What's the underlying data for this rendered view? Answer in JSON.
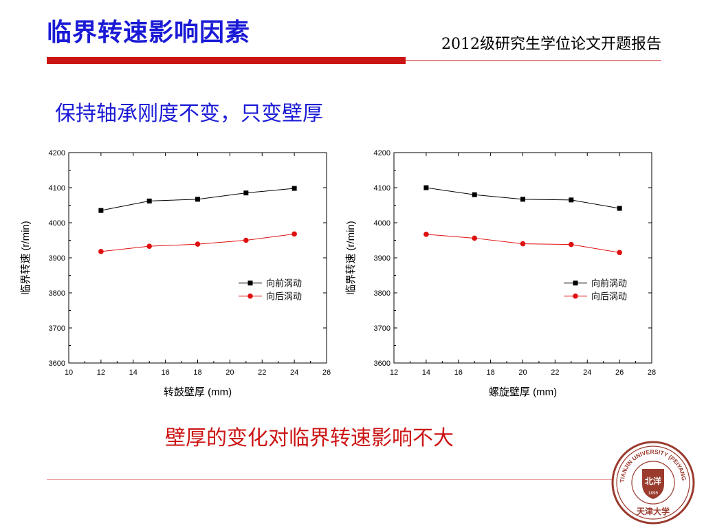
{
  "page": {
    "title": "临界转速影响因素",
    "header_right": "2012级研究生学位论文开题报告",
    "subheading": "保持轴承刚度不变，只变壁厚",
    "conclusion": "壁厚的变化对临界转速影响不大"
  },
  "logo": {
    "outer_text": "TIANJIN UNIVERSITY (PEIYANG UNIVERSITY)",
    "year": "1895",
    "center_text": "北洋",
    "bottom_text": "天津大学"
  },
  "colors": {
    "title": "#1a1ad6",
    "accent_red": "#cc1414",
    "series_forward": "#000000",
    "series_backward": "#e01010"
  },
  "chart_data": [
    {
      "type": "line",
      "xlabel": "转鼓壁厚 (mm)",
      "ylabel": "临界转速 (r/min)",
      "xlim": [
        10,
        26
      ],
      "ylim": [
        3600,
        4200
      ],
      "xticks": [
        10,
        12,
        14,
        16,
        18,
        20,
        22,
        24,
        26
      ],
      "yticks": [
        3600,
        3700,
        3800,
        3900,
        4000,
        4100,
        4200
      ],
      "legend_position": "right-middle",
      "series": [
        {
          "name": "向前涡动",
          "marker": "square",
          "color": "#000000",
          "x": [
            12,
            15,
            18,
            21,
            24
          ],
          "y": [
            4035,
            4062,
            4067,
            4085,
            4098
          ]
        },
        {
          "name": "向后涡动",
          "marker": "circle",
          "color": "#e01010",
          "x": [
            12,
            15,
            18,
            21,
            24
          ],
          "y": [
            3918,
            3933,
            3939,
            3950,
            3968
          ]
        }
      ]
    },
    {
      "type": "line",
      "xlabel": "螺旋壁厚 (mm)",
      "ylabel": "临界转速 (r/min)",
      "xlim": [
        12,
        28
      ],
      "ylim": [
        3600,
        4200
      ],
      "xticks": [
        12,
        14,
        16,
        18,
        20,
        22,
        24,
        26,
        28
      ],
      "yticks": [
        3600,
        3700,
        3800,
        3900,
        4000,
        4100,
        4200
      ],
      "legend_position": "right-middle",
      "series": [
        {
          "name": "向前涡动",
          "marker": "square",
          "color": "#000000",
          "x": [
            14,
            17,
            20,
            23,
            26
          ],
          "y": [
            4100,
            4080,
            4067,
            4065,
            4041
          ]
        },
        {
          "name": "向后涡动",
          "marker": "circle",
          "color": "#e01010",
          "x": [
            14,
            17,
            20,
            23,
            26
          ],
          "y": [
            3967,
            3956,
            3940,
            3938,
            3915
          ]
        }
      ]
    }
  ]
}
